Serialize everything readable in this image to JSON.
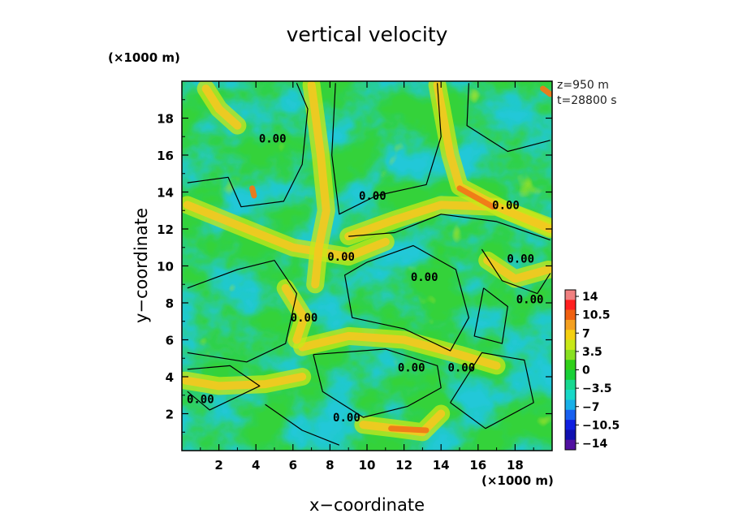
{
  "chart_data": {
    "type": "heatmap",
    "title": "vertical velocity",
    "xlabel": "x−coordinate",
    "ylabel": "y−coordinate",
    "x_multiplier": "(×1000 m)",
    "y_multiplier": "(×1000 m)",
    "annotations": [
      "z=950 m",
      "t=28800 s"
    ],
    "xlim": [
      0,
      20
    ],
    "ylim": [
      0,
      20
    ],
    "x_ticks": [
      "2",
      "4",
      "6",
      "8",
      "10",
      "12",
      "14",
      "16",
      "18"
    ],
    "y_ticks": [
      "2",
      "4",
      "6",
      "8",
      "10",
      "12",
      "14",
      "16",
      "18"
    ],
    "contour_levels": [
      0
    ],
    "contour_label": "0.00",
    "contour_label_positions": [
      [
        4.9,
        16.9
      ],
      [
        10.3,
        13.8
      ],
      [
        17.5,
        13.3
      ],
      [
        8.6,
        10.5
      ],
      [
        18.3,
        10.4
      ],
      [
        13.1,
        9.4
      ],
      [
        18.8,
        8.2
      ],
      [
        6.6,
        7.2
      ],
      [
        12.4,
        4.5
      ],
      [
        15.1,
        4.5
      ],
      [
        1.0,
        2.8
      ],
      [
        8.9,
        1.8
      ]
    ],
    "colorbar": {
      "min": -14,
      "max": 14,
      "tick_labels": [
        "14",
        "10.5",
        "7",
        "3.5",
        "0",
        "−3.5",
        "−7",
        "−10.5",
        "−14"
      ],
      "colors": [
        "#f08080",
        "#ff2020",
        "#f06010",
        "#f4a020",
        "#f4d010",
        "#c8e818",
        "#88e020",
        "#30d018",
        "#18d038",
        "#18d890",
        "#18d8c8",
        "#18b0e8",
        "#1860f0",
        "#1020e0",
        "#1010b0",
        "#5010a0"
      ]
    }
  }
}
